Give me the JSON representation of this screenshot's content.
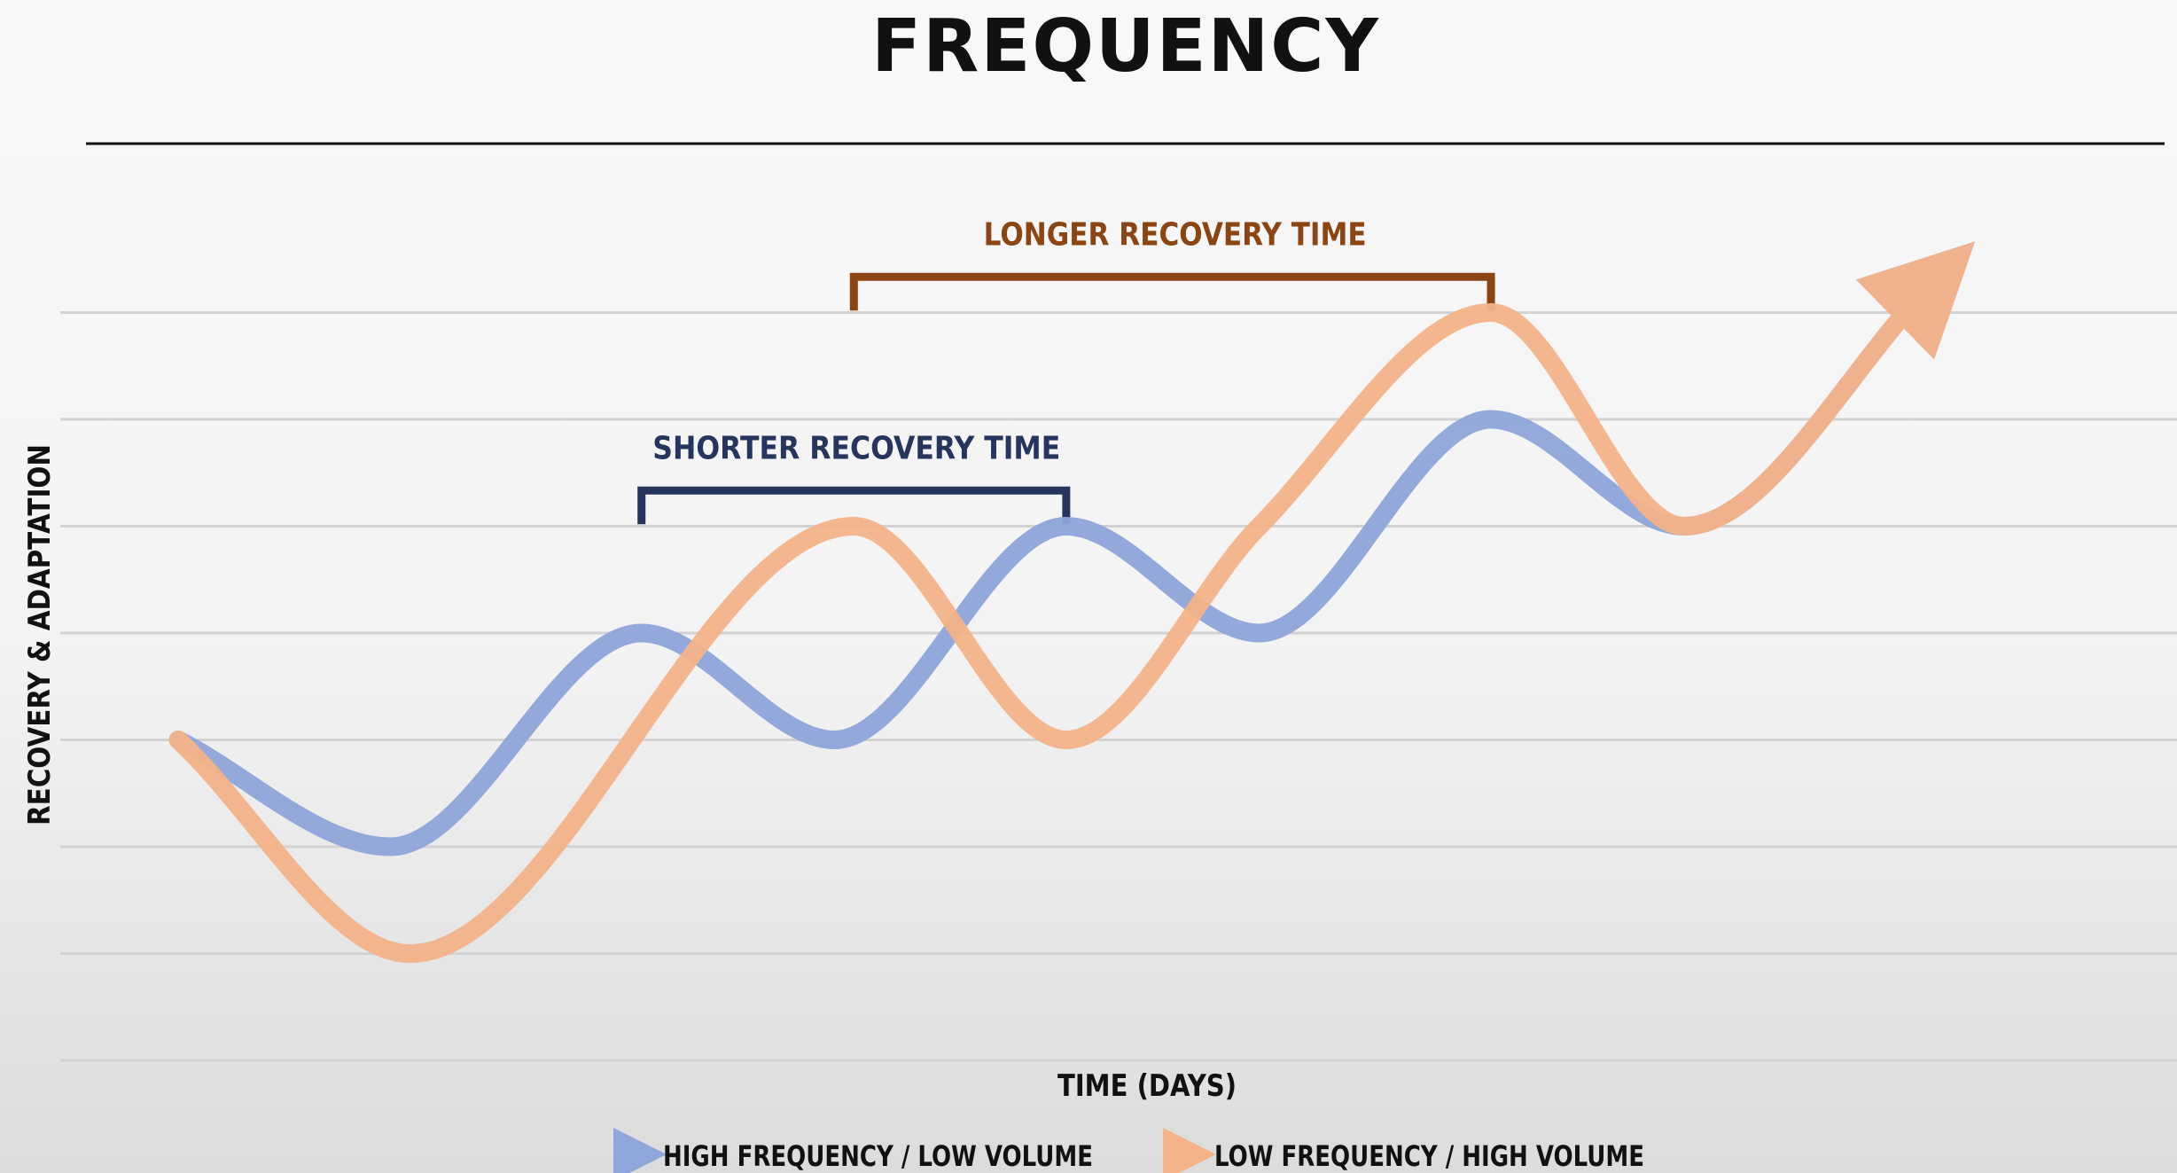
{
  "chart_data": {
    "type": "line",
    "title": "FREQUENCY",
    "xlabel": "TIME (DAYS)",
    "ylabel": "RECOVERY & ADAPTATION",
    "grid": true,
    "legend_position": "bottom-center",
    "xlim": [
      0,
      100
    ],
    "ylim": [
      0,
      8
    ],
    "series": [
      {
        "name": "HIGH FREQUENCY / LOW VOLUME",
        "color": "#8fa6da",
        "points": [
          [
            0,
            3
          ],
          [
            11,
            2
          ],
          [
            24,
            4
          ],
          [
            34,
            3
          ],
          [
            46,
            5
          ],
          [
            56,
            4
          ],
          [
            68,
            6
          ],
          [
            78,
            5
          ],
          [
            91,
            7.3
          ]
        ]
      },
      {
        "name": "LOW FREQUENCY / HIGH VOLUME",
        "color": "#f4b389",
        "points": [
          [
            0,
            3
          ],
          [
            12,
            1
          ],
          [
            35,
            5
          ],
          [
            46,
            3
          ],
          [
            56,
            5
          ],
          [
            68,
            7
          ],
          [
            78,
            5
          ],
          [
            91,
            7.3
          ]
        ]
      }
    ],
    "annotations": [
      {
        "label": "SHORTER RECOVERY TIME",
        "color": "#25355e",
        "x_range": [
          24,
          46
        ],
        "level": 5.5
      },
      {
        "label": "LONGER RECOVERY TIME",
        "color": "#8a4513",
        "x_range": [
          35,
          68
        ],
        "level": 7.5
      }
    ]
  }
}
